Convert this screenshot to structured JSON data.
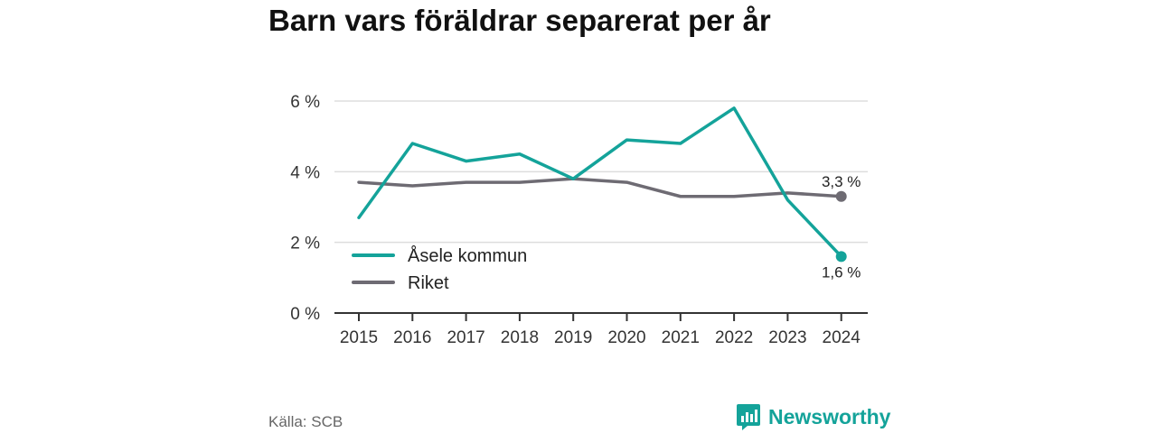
{
  "chart_data": {
    "type": "line",
    "title": "Barn vars föräldrar separerat per år",
    "xlabel": "",
    "ylabel": "",
    "x": [
      "2015",
      "2016",
      "2017",
      "2018",
      "2019",
      "2020",
      "2021",
      "2022",
      "2023",
      "2024"
    ],
    "ylim": [
      0,
      6
    ],
    "yticks": [
      0,
      2,
      4,
      6
    ],
    "ytick_labels": [
      "0 %",
      "2 %",
      "4 %",
      "6 %"
    ],
    "grid": true,
    "legend_position": "bottom-left",
    "series": [
      {
        "name": "Åsele kommun",
        "color": "#14a39a",
        "values": [
          2.7,
          4.8,
          4.3,
          4.5,
          3.8,
          4.9,
          4.8,
          5.8,
          3.2,
          1.6
        ],
        "end_label": "1,6 %"
      },
      {
        "name": "Riket",
        "color": "#6e6b73",
        "values": [
          3.7,
          3.6,
          3.7,
          3.7,
          3.8,
          3.7,
          3.3,
          3.3,
          3.4,
          3.3
        ],
        "end_label": "3,3 %"
      }
    ]
  },
  "source": "Källa: SCB",
  "brand": {
    "name": "Newsworthy",
    "icon": "newsworthy-logo-icon",
    "color": "#14a39a"
  }
}
